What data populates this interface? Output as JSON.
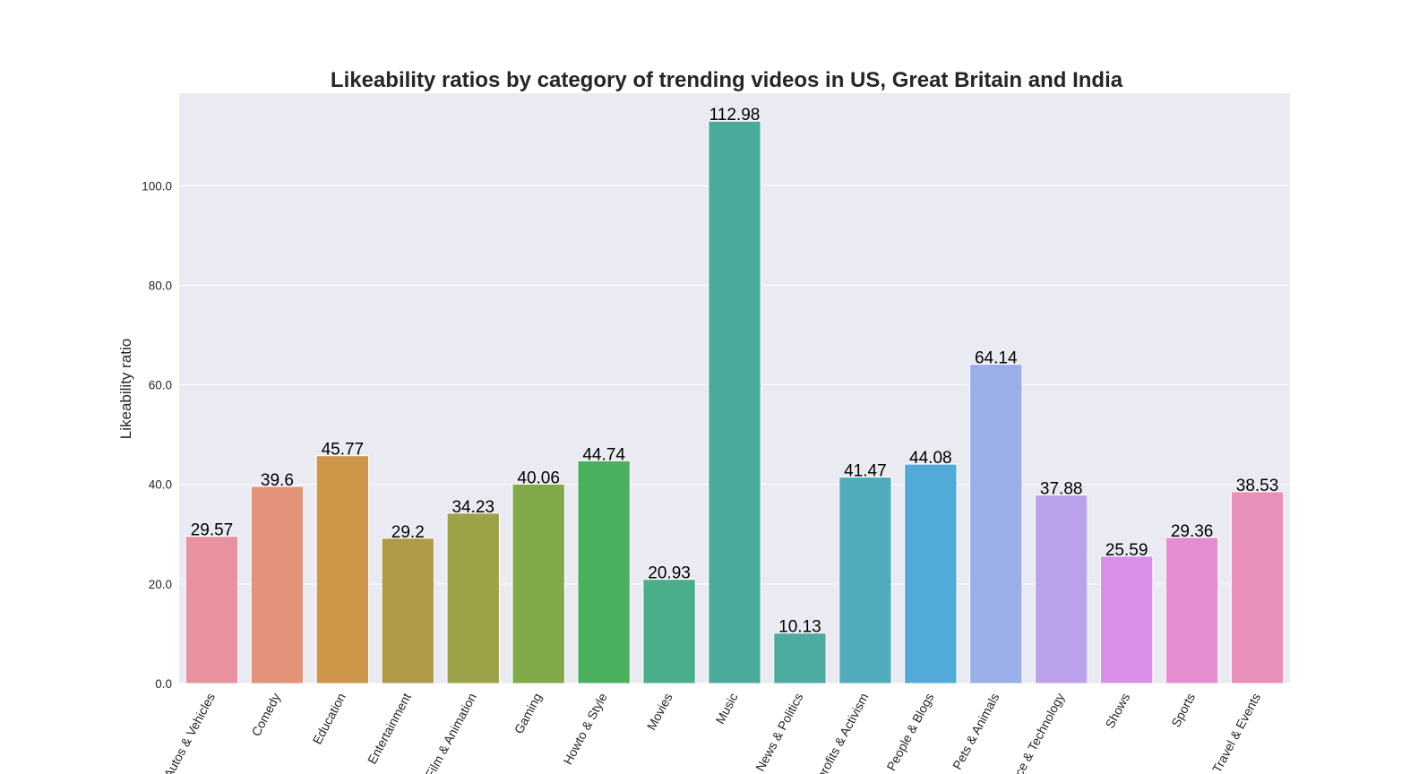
{
  "chart_data": {
    "type": "bar",
    "title": "Likeability ratios by category of trending videos in US, Great Britain and India",
    "xlabel": "",
    "ylabel": "Likeability ratio",
    "ylim": [
      0,
      118.6
    ],
    "yticks": [
      "0.0",
      "20.0",
      "40.0",
      "60.0",
      "80.0",
      "100.0"
    ],
    "ytick_values": [
      0,
      20,
      40,
      60,
      80,
      100
    ],
    "grid": true,
    "legend": "none",
    "background": "#eaeaf2",
    "categories": [
      "Autos & Vehicles",
      "Comedy",
      "Education",
      "Entertainment",
      "Film & Animation",
      "Gaming",
      "Howto & Style",
      "Movies",
      "Music",
      "News & Politics",
      "Nonprofits & Activism",
      "People & Blogs",
      "Pets & Animals",
      "Science & Technology",
      "Shows",
      "Sports",
      "Travel & Events"
    ],
    "values": [
      29.57,
      39.6,
      45.77,
      29.2,
      34.23,
      40.06,
      44.74,
      20.93,
      112.98,
      10.13,
      41.47,
      44.08,
      64.14,
      37.88,
      25.59,
      29.36,
      38.53
    ],
    "value_labels": [
      "29.57",
      "39.6",
      "45.77",
      "29.2",
      "34.23",
      "40.06",
      "44.74",
      "20.93",
      "112.98",
      "10.13",
      "41.47",
      "44.08",
      "64.14",
      "37.88",
      "25.59",
      "29.36",
      "38.53"
    ],
    "colors": [
      "#e8929f",
      "#e3937a",
      "#cd9649",
      "#b09a47",
      "#9ca248",
      "#82a948",
      "#4bb05d",
      "#4aae8b",
      "#4bab9b",
      "#4dab9f",
      "#50abbc",
      "#52aad8",
      "#9aaee7",
      "#bba2ea",
      "#d98fe7",
      "#e68dd2",
      "#e890b9"
    ]
  }
}
